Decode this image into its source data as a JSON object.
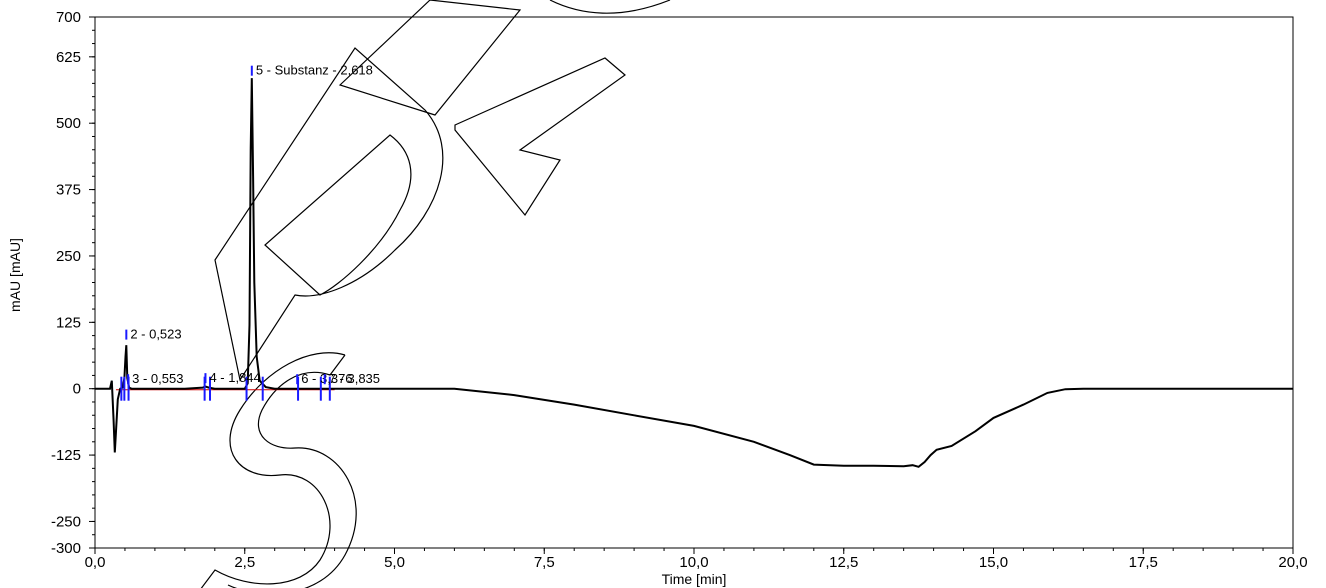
{
  "chart_data": {
    "type": "line",
    "xlabel": "Time [min]",
    "ylabel": "mAU [mAU]",
    "xlim": [
      0,
      20
    ],
    "ylim": [
      -300,
      700
    ],
    "x_ticks": [
      0,
      2.5,
      5,
      7.5,
      10,
      12.5,
      15,
      17.5,
      20
    ],
    "x_tick_labels": [
      "0,0",
      "2,5",
      "5,0",
      "7,5",
      "10,0",
      "12,5",
      "15,0",
      "17,5",
      "20,0"
    ],
    "y_ticks": [
      700,
      625,
      500,
      375,
      250,
      125,
      0,
      -125,
      -250,
      -300
    ],
    "y_tick_labels": [
      "700",
      "625",
      "500",
      "375",
      "250",
      "125",
      "0",
      "-125",
      "-250",
      "-300"
    ],
    "grid": false,
    "series": [
      {
        "x": [
          0.0,
          0.25,
          0.28,
          0.31,
          0.33,
          0.35,
          0.38,
          0.42,
          0.46,
          0.49,
          0.51,
          0.523,
          0.54,
          0.57,
          0.61,
          0.7,
          1.0,
          1.5,
          1.8,
          1.844,
          1.9,
          2.0,
          2.3,
          2.5,
          2.55,
          2.58,
          2.6,
          2.618,
          2.64,
          2.66,
          2.7,
          2.75,
          2.85,
          3.0,
          3.3,
          3.5,
          3.8,
          4.0,
          5.0,
          5.5,
          6.0,
          7.0,
          8.0,
          9.0,
          10.0,
          11.0,
          11.6,
          12.0,
          12.5,
          13.0,
          13.5,
          13.65,
          13.75,
          13.85,
          13.95,
          14.05,
          14.3,
          14.7,
          15.0,
          15.5,
          15.9,
          16.2,
          16.5,
          17.5,
          20.0
        ],
        "y": [
          0,
          0,
          15,
          -60,
          -120,
          -80,
          -20,
          0,
          2,
          20,
          60,
          82,
          20,
          2,
          0,
          0,
          0,
          0,
          2,
          4,
          2,
          0,
          0,
          0,
          10,
          120,
          450,
          585,
          400,
          200,
          60,
          15,
          3,
          0,
          0,
          0,
          0,
          0,
          0,
          0,
          0,
          -12,
          -30,
          -50,
          -70,
          -100,
          -125,
          -143,
          -145,
          -145,
          -146,
          -144,
          -147,
          -138,
          -125,
          -115,
          -108,
          -80,
          -55,
          -30,
          -8,
          -1,
          0,
          0,
          0
        ]
      }
    ],
    "peaks": [
      {
        "label": "2 - 0,523",
        "x": 0.523
      },
      {
        "label": "3 - 0,553",
        "x": 0.553
      },
      {
        "label": "4 - 1,844",
        "x": 1.844
      },
      {
        "label": "5 - Substanz - 2,618",
        "x": 2.618
      },
      {
        "label": "6 - 3,376",
        "x": 3.376
      },
      {
        "label": "7 - 3,835",
        "x": 3.835
      }
    ],
    "peak_markers": [
      0.44,
      0.49,
      0.56,
      1.83,
      1.92,
      2.53,
      2.8,
      3.39,
      3.77,
      3.92
    ],
    "colors": {
      "trace": "#000000",
      "markers": "#1a1aff",
      "baseline": "#cc0000"
    }
  }
}
